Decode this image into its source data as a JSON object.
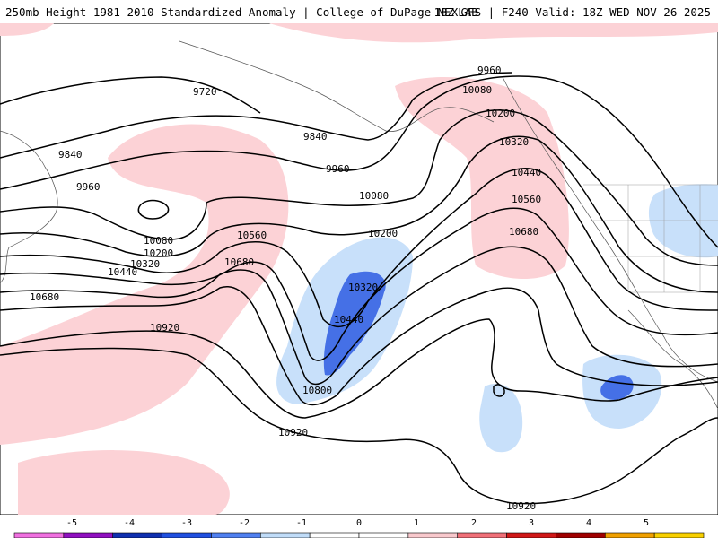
{
  "header": {
    "title_left": "250mb Height 1981-2010 Standardized Anomaly | College of DuPage NEXLAB",
    "title_right": "18Z GFS | F240 Valid: 18Z WED NOV 26 2025"
  },
  "contour_labels": [
    {
      "id": "l-9720",
      "text": "9720"
    },
    {
      "id": "l-9840a",
      "text": "9840"
    },
    {
      "id": "l-9840b",
      "text": "9840"
    },
    {
      "id": "l-9960a",
      "text": "9960"
    },
    {
      "id": "l-9960b",
      "text": "9960"
    },
    {
      "id": "l-9960c",
      "text": "9960"
    },
    {
      "id": "l-10080a",
      "text": "10080"
    },
    {
      "id": "l-10080b",
      "text": "10080"
    },
    {
      "id": "l-10080c",
      "text": "10080"
    },
    {
      "id": "l-10200a",
      "text": "10200"
    },
    {
      "id": "l-10200b",
      "text": "10200"
    },
    {
      "id": "l-10200c",
      "text": "10200"
    },
    {
      "id": "l-10320a",
      "text": "10320"
    },
    {
      "id": "l-10320b",
      "text": "10320"
    },
    {
      "id": "l-10320c",
      "text": "10320"
    },
    {
      "id": "l-10440a",
      "text": "10440"
    },
    {
      "id": "l-10440b",
      "text": "10440"
    },
    {
      "id": "l-10440c",
      "text": "10440"
    },
    {
      "id": "l-10560a",
      "text": "10560"
    },
    {
      "id": "l-10560b",
      "text": "10560"
    },
    {
      "id": "l-10680a",
      "text": "10680"
    },
    {
      "id": "l-10680b",
      "text": "10680"
    },
    {
      "id": "l-10680c",
      "text": "10680"
    },
    {
      "id": "l-10800",
      "text": "10800"
    },
    {
      "id": "l-10920a",
      "text": "10920"
    },
    {
      "id": "l-10920b",
      "text": "10920"
    },
    {
      "id": "l-10920c",
      "text": "10920"
    }
  ],
  "colorbar": {
    "ticks": [
      "-5",
      "-4",
      "-3",
      "-2",
      "-1",
      "0",
      "1",
      "2",
      "3",
      "4",
      "5"
    ],
    "colors": [
      "#f070e0",
      "#9010c0",
      "#1030b0",
      "#2050e0",
      "#5080f0",
      "#c0dcf8",
      "#ffffff",
      "#ffffff",
      "#f8c8cc",
      "#f07078",
      "#d01818",
      "#a00000",
      "#f0a000",
      "#f8d000"
    ],
    "range": [
      -6,
      6
    ]
  },
  "shading_colors": {
    "positive_1": "#fcd2d6",
    "negative_1": "#c8e0fa",
    "negative_2": "#4570e6"
  }
}
